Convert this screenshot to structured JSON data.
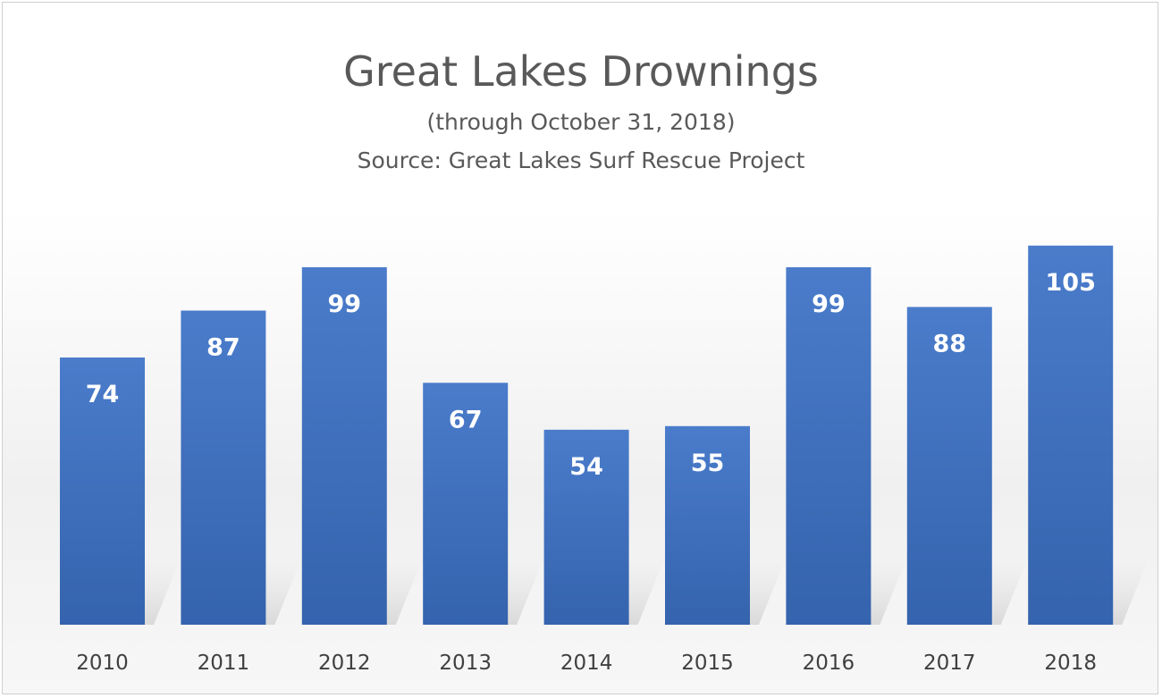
{
  "chart_data": {
    "type": "bar",
    "title": "Great Lakes Drownings",
    "subtitle": "(through October 31, 2018)",
    "source": "Source: Great Lakes Surf Rescue Project",
    "categories": [
      "2010",
      "2011",
      "2012",
      "2013",
      "2014",
      "2015",
      "2016",
      "2017",
      "2018"
    ],
    "values": [
      74,
      87,
      99,
      67,
      54,
      55,
      99,
      88,
      105
    ],
    "ylim": [
      0,
      115
    ],
    "grid": false,
    "legend": "none",
    "bar_color": "#4472C4",
    "data_labels": true
  }
}
